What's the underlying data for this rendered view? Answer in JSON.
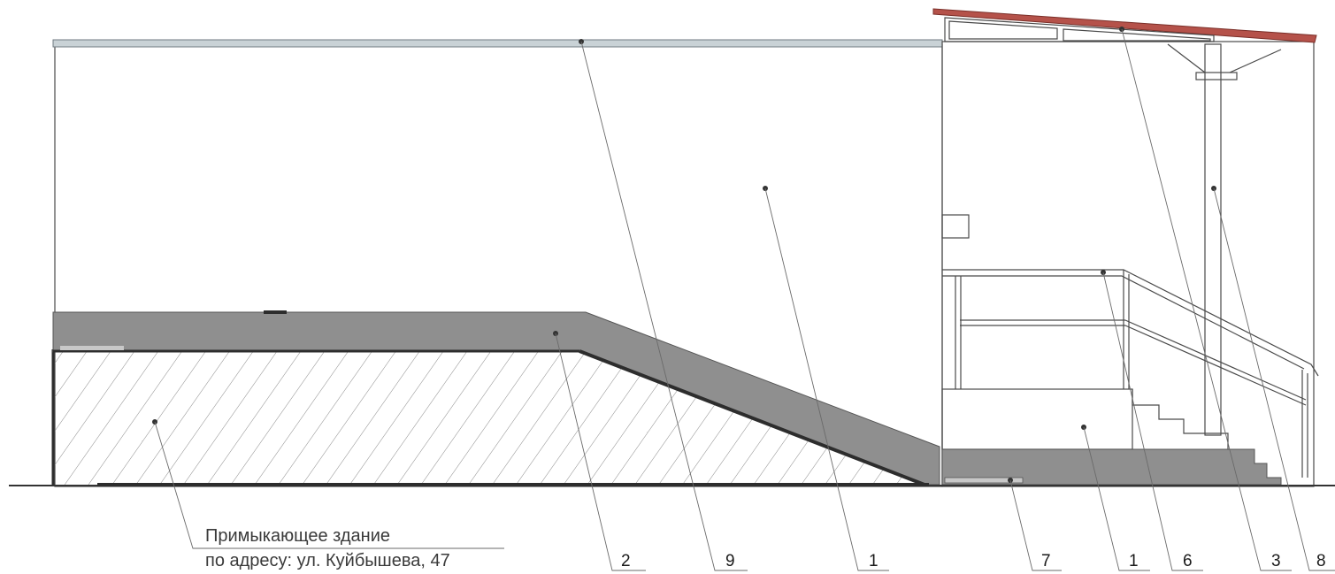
{
  "note": {
    "line1": "Примыкающее здание",
    "line2": "по адресу: ул. Куйбышева, 47"
  },
  "labels": [
    "2",
    "9",
    "1",
    "7",
    "1",
    "6",
    "3",
    "8"
  ],
  "colors": {
    "ramp_fill": "#8f8f8f",
    "roof": "#b5524a",
    "parapet": "#c9d2d6",
    "hatch": "#8a8a8a",
    "ground": "#333333"
  }
}
